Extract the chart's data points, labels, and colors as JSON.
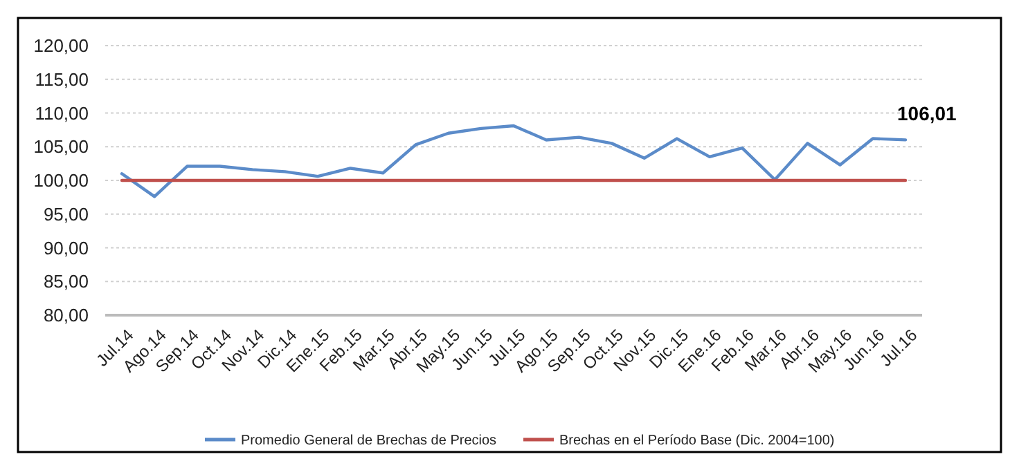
{
  "chart_data": {
    "type": "line",
    "categories": [
      "Jul.14",
      "Ago.14",
      "Sep.14",
      "Oct.14",
      "Nov.14",
      "Dic.14",
      "Ene.15",
      "Feb.15",
      "Mar.15",
      "Abr.15",
      "May.15",
      "Jun.15",
      "Jul.15",
      "Ago.15",
      "Sep.15",
      "Oct.15",
      "Nov.15",
      "Dic.15",
      "Ene.16",
      "Feb.16",
      "Mar.16",
      "Abr.16",
      "May.16",
      "Jun.16",
      "Jul.16"
    ],
    "series": [
      {
        "name": "Promedio General de Brechas de Precios",
        "color": "#5b8bc9",
        "values": [
          101.0,
          97.6,
          102.1,
          102.1,
          101.6,
          101.3,
          100.6,
          101.8,
          101.1,
          105.3,
          107.0,
          107.7,
          108.1,
          106.0,
          106.4,
          105.5,
          103.3,
          106.2,
          103.5,
          104.8,
          100.1,
          105.5,
          102.3,
          106.2,
          106.01
        ],
        "value_labels": [
          null,
          null,
          null,
          null,
          null,
          null,
          null,
          null,
          null,
          null,
          null,
          null,
          null,
          null,
          null,
          null,
          null,
          null,
          null,
          null,
          null,
          null,
          null,
          null,
          "106,01"
        ]
      },
      {
        "name": "Brechas en el Período Base (Dic. 2004=100)",
        "color": "#c0504d",
        "values": [
          100,
          100,
          100,
          100,
          100,
          100,
          100,
          100,
          100,
          100,
          100,
          100,
          100,
          100,
          100,
          100,
          100,
          100,
          100,
          100,
          100,
          100,
          100,
          100,
          100
        ]
      }
    ],
    "ylim": [
      80,
      120
    ],
    "yticks": [
      {
        "value": 80,
        "label": "80,00"
      },
      {
        "value": 85,
        "label": "85,00"
      },
      {
        "value": 90,
        "label": "90,00"
      },
      {
        "value": 95,
        "label": "95,00"
      },
      {
        "value": 100,
        "label": "100,00"
      },
      {
        "value": 105,
        "label": "105,00"
      },
      {
        "value": 110,
        "label": "110,00"
      },
      {
        "value": 115,
        "label": "115,00"
      },
      {
        "value": 120,
        "label": "120,00"
      }
    ],
    "grid": "y",
    "legend": "bottom",
    "marker": "none",
    "line_style": "solid"
  }
}
